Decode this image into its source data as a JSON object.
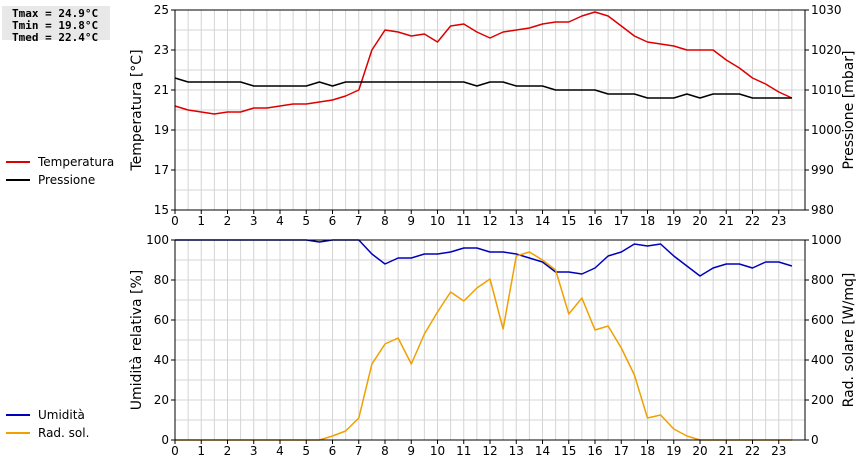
{
  "stats": {
    "tmax": "Tmax = 24.9°C",
    "tmin": "Tmin = 19.8°C",
    "tmed": "Tmed = 22.4°C"
  },
  "colors": {
    "temperature": "#dd0000",
    "pressure": "#000000",
    "humidity": "#0000bb",
    "radiation": "#f0a000",
    "grid": "#d4d4d4"
  },
  "chart_data": [
    {
      "type": "line",
      "title": "",
      "x_ticks": [
        0,
        1,
        2,
        3,
        4,
        5,
        6,
        7,
        8,
        9,
        10,
        11,
        12,
        13,
        14,
        15,
        16,
        17,
        18,
        19,
        20,
        21,
        22,
        23
      ],
      "xlim": [
        0,
        24
      ],
      "ylabel": "Temperatura [°C]",
      "ylim": [
        15,
        25
      ],
      "y_ticks": [
        15,
        17,
        19,
        21,
        23,
        25
      ],
      "y2label": "Pressione [mbar]",
      "y2lim": [
        980,
        1030
      ],
      "y2_ticks": [
        980,
        990,
        1000,
        1010,
        1020,
        1030
      ],
      "legend": [
        "Temperatura",
        "Pressione"
      ],
      "series": [
        {
          "name": "Temperatura",
          "axis": "left",
          "x": [
            0,
            0.5,
            1,
            1.5,
            2,
            2.5,
            3,
            3.5,
            4,
            4.5,
            5,
            5.5,
            6,
            6.5,
            7,
            7.5,
            8,
            8.5,
            9,
            9.5,
            10,
            10.5,
            11,
            11.5,
            12,
            12.5,
            13,
            13.5,
            14,
            14.5,
            15,
            15.5,
            16,
            16.5,
            17,
            17.5,
            18,
            18.5,
            19,
            19.5,
            20,
            20.5,
            21,
            21.5,
            22,
            22.5,
            23,
            23.5
          ],
          "values": [
            20.2,
            20.0,
            19.9,
            19.8,
            19.9,
            19.9,
            20.1,
            20.1,
            20.2,
            20.3,
            20.3,
            20.4,
            20.5,
            20.7,
            21.0,
            23.0,
            24.0,
            23.9,
            23.7,
            23.8,
            23.4,
            24.2,
            24.3,
            23.9,
            23.6,
            23.9,
            24.0,
            24.1,
            24.3,
            24.4,
            24.4,
            24.7,
            24.9,
            24.7,
            24.2,
            23.7,
            23.4,
            23.3,
            23.2,
            23.0,
            23.0,
            23.0,
            22.5,
            22.1,
            21.6,
            21.3,
            20.9,
            20.6
          ]
        },
        {
          "name": "Pressione",
          "axis": "right",
          "x": [
            0,
            0.5,
            1,
            1.5,
            2,
            2.5,
            3,
            3.5,
            4,
            4.5,
            5,
            5.5,
            6,
            6.5,
            7,
            7.5,
            8,
            8.5,
            9,
            9.5,
            10,
            10.5,
            11,
            11.5,
            12,
            12.5,
            13,
            13.5,
            14,
            14.5,
            15,
            15.5,
            16,
            16.5,
            17,
            17.5,
            18,
            18.5,
            19,
            19.5,
            20,
            20.5,
            21,
            21.5,
            22,
            22.5,
            23,
            23.5
          ],
          "values": [
            1013,
            1012,
            1012,
            1012,
            1012,
            1012,
            1011,
            1011,
            1011,
            1011,
            1011,
            1012,
            1011,
            1012,
            1012,
            1012,
            1012,
            1012,
            1012,
            1012,
            1012,
            1012,
            1012,
            1011,
            1012,
            1012,
            1011,
            1011,
            1011,
            1010,
            1010,
            1010,
            1010,
            1009,
            1009,
            1009,
            1008,
            1008,
            1008,
            1009,
            1008,
            1009,
            1009,
            1009,
            1008,
            1008,
            1008,
            1008
          ]
        }
      ]
    },
    {
      "type": "line",
      "title": "",
      "x_ticks": [
        0,
        1,
        2,
        3,
        4,
        5,
        6,
        7,
        8,
        9,
        10,
        11,
        12,
        13,
        14,
        15,
        16,
        17,
        18,
        19,
        20,
        21,
        22,
        23
      ],
      "xlim": [
        0,
        24
      ],
      "ylabel": "Umidità relativa [%]",
      "ylim": [
        0,
        100
      ],
      "y_ticks": [
        0,
        20,
        40,
        60,
        80,
        100
      ],
      "y2label": "Rad. solare [W/mq]",
      "y2lim": [
        0,
        1000
      ],
      "y2_ticks": [
        0,
        200,
        400,
        600,
        800,
        1000
      ],
      "legend": [
        "Umidità",
        "Rad. sol."
      ],
      "series": [
        {
          "name": "Umidità",
          "axis": "left",
          "x": [
            0,
            0.5,
            1,
            1.5,
            2,
            2.5,
            3,
            3.5,
            4,
            4.5,
            5,
            5.5,
            6,
            6.5,
            7,
            7.5,
            8,
            8.5,
            9,
            9.5,
            10,
            10.5,
            11,
            11.5,
            12,
            12.5,
            13,
            13.5,
            14,
            14.5,
            15,
            15.5,
            16,
            16.5,
            17,
            17.5,
            18,
            18.5,
            19,
            19.5,
            20,
            20.5,
            21,
            21.5,
            22,
            22.5,
            23,
            23.5
          ],
          "values": [
            100,
            100,
            100,
            100,
            100,
            100,
            100,
            100,
            100,
            100,
            100,
            99,
            100,
            100,
            100,
            93,
            88,
            91,
            91,
            93,
            93,
            94,
            96,
            96,
            94,
            94,
            93,
            91,
            89,
            84,
            84,
            83,
            86,
            92,
            94,
            98,
            97,
            98,
            92,
            87,
            82,
            86,
            88,
            88,
            86,
            89,
            89,
            87
          ]
        },
        {
          "name": "Rad. sol.",
          "axis": "right",
          "x": [
            0,
            0.5,
            1,
            1.5,
            2,
            2.5,
            3,
            3.5,
            4,
            4.5,
            5,
            5.5,
            6,
            6.5,
            7,
            7.5,
            8,
            8.5,
            9,
            9.5,
            10,
            10.5,
            11,
            11.5,
            12,
            12.5,
            13,
            13.5,
            14,
            14.5,
            15,
            15.5,
            16,
            16.5,
            17,
            17.5,
            18,
            18.5,
            19,
            19.5,
            20,
            20.5,
            21,
            21.5,
            22,
            22.5,
            23,
            23.5
          ],
          "values": [
            0,
            0,
            0,
            0,
            0,
            0,
            0,
            0,
            0,
            0,
            0,
            0,
            20,
            45,
            110,
            380,
            480,
            510,
            380,
            530,
            640,
            740,
            695,
            760,
            805,
            555,
            920,
            940,
            900,
            850,
            630,
            710,
            550,
            570,
            460,
            325,
            110,
            125,
            55,
            20,
            0,
            0,
            0,
            0,
            0,
            0,
            0,
            0
          ]
        }
      ]
    }
  ]
}
